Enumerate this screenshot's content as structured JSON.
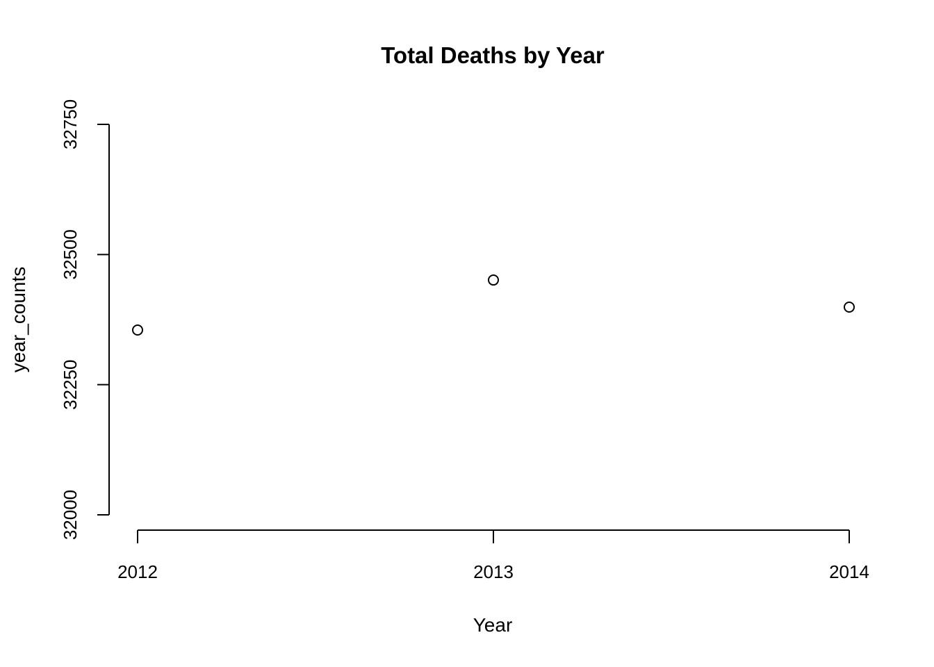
{
  "chart_data": {
    "type": "scatter",
    "title": "Total Deaths by Year",
    "xlabel": "Year",
    "ylabel": "year_counts",
    "x": [
      2012,
      2013,
      2014
    ],
    "y": [
      32355,
      32451,
      32399
    ],
    "xticks": [
      "2012",
      "2013",
      "2014"
    ],
    "yticks": [
      "32000",
      "32250",
      "32500",
      "32750"
    ],
    "xlim": [
      2012,
      2014
    ],
    "ylim": [
      32000,
      32750
    ],
    "grid": false,
    "legend": "none"
  }
}
